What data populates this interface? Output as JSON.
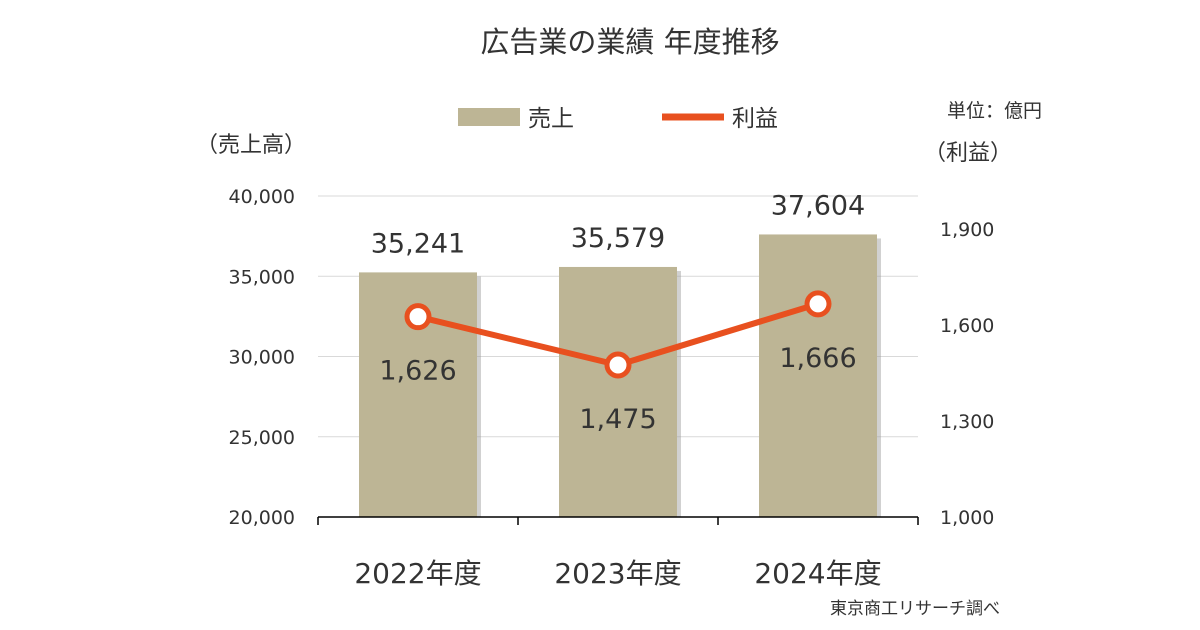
{
  "chart_data": {
    "type": "bar",
    "title": "広告業の業績 年度推移",
    "categories": [
      "2022年度",
      "2023年度",
      "2024年度"
    ],
    "series": [
      {
        "name": "売上",
        "type": "bar",
        "axis": "left",
        "values": [
          35241,
          35579,
          37604
        ],
        "labels": [
          "35,241",
          "35,579",
          "37,604"
        ]
      },
      {
        "name": "利益",
        "type": "line",
        "axis": "right",
        "values": [
          1626,
          1475,
          1666
        ],
        "labels": [
          "1,626",
          "1,475",
          "1,666"
        ]
      }
    ],
    "left_axis": {
      "label": "（売上高）",
      "range": [
        20000,
        40000
      ],
      "ticks": [
        "20,000",
        "25,000",
        "30,000",
        "35,000",
        "40,000"
      ]
    },
    "right_axis": {
      "label": "（利益）",
      "range": [
        1000,
        1900
      ],
      "ticks": [
        "1,000",
        "1,300",
        "1,600",
        "1,900"
      ]
    },
    "unit_note": "単位：億円",
    "source_note": "東京商工リサーチ調べ",
    "legend_position": "top",
    "grid": true,
    "colors": {
      "bar": "#BDB595",
      "line": "#E8501F",
      "grid": "#D9D9D9",
      "axis": "#000000"
    }
  }
}
